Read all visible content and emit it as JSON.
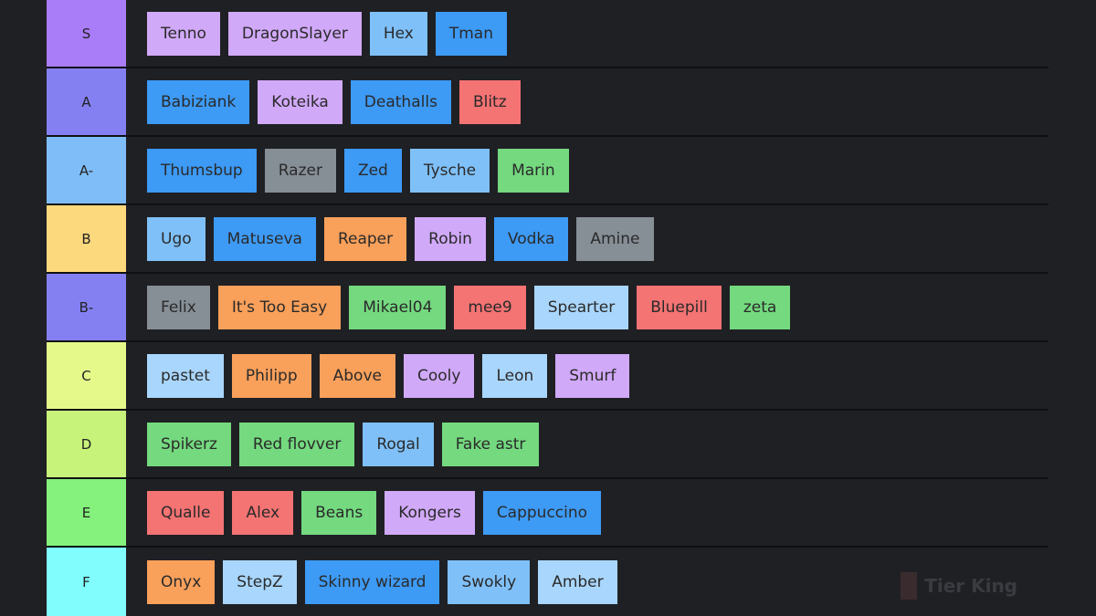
{
  "tiers": [
    {
      "label": "S",
      "color": "#a97cf8",
      "items": [
        {
          "name": "Tenno",
          "color": "#d1a9f9"
        },
        {
          "name": "DragonSlayer",
          "color": "#d1a9f9"
        },
        {
          "name": "Hex",
          "color": "#7fc0f8"
        },
        {
          "name": "Tman",
          "color": "#3d9af5"
        }
      ]
    },
    {
      "label": "A",
      "color": "#8580f2",
      "items": [
        {
          "name": "Babiziank",
          "color": "#3d9af5"
        },
        {
          "name": "Koteika",
          "color": "#d1a9f9"
        },
        {
          "name": "Deathalls",
          "color": "#3d9af5"
        },
        {
          "name": "Blitz",
          "color": "#f47373"
        }
      ]
    },
    {
      "label": "A-",
      "color": "#7fbdf8",
      "items": [
        {
          "name": "Thumsbup",
          "color": "#3d9af5"
        },
        {
          "name": "Razer",
          "color": "#868e96"
        },
        {
          "name": "Zed",
          "color": "#3d9af5"
        },
        {
          "name": "Tysche",
          "color": "#7fc0f8"
        },
        {
          "name": "Marin",
          "color": "#74d97f"
        }
      ]
    },
    {
      "label": "B",
      "color": "#fdd97d",
      "items": [
        {
          "name": "Ugo",
          "color": "#7fc0f8"
        },
        {
          "name": "Matuseva",
          "color": "#3d9af5"
        },
        {
          "name": "Reaper",
          "color": "#f9a05b"
        },
        {
          "name": "Robin",
          "color": "#d1a9f9"
        },
        {
          "name": "Vodka",
          "color": "#3d9af5"
        },
        {
          "name": "Amine",
          "color": "#868e96"
        }
      ]
    },
    {
      "label": "B-",
      "color": "#8580f2",
      "items": [
        {
          "name": "Felix",
          "color": "#868e96"
        },
        {
          "name": "It's Too Easy",
          "color": "#f9a05b"
        },
        {
          "name": "Mikael04",
          "color": "#74d97f"
        },
        {
          "name": "mee9",
          "color": "#f47373"
        },
        {
          "name": "Spearter",
          "color": "#a9d6fc"
        },
        {
          "name": "Bluepill",
          "color": "#f47373"
        },
        {
          "name": "zeta",
          "color": "#74d97f"
        }
      ]
    },
    {
      "label": "C",
      "color": "#e5f98b",
      "items": [
        {
          "name": "pastet",
          "color": "#a9d6fc"
        },
        {
          "name": "Philipp",
          "color": "#f9a05b"
        },
        {
          "name": "Above",
          "color": "#f9a05b"
        },
        {
          "name": "Cooly",
          "color": "#d1a9f9"
        },
        {
          "name": "Leon",
          "color": "#a9d6fc"
        },
        {
          "name": "Smurf",
          "color": "#d1a9f9"
        }
      ]
    },
    {
      "label": "D",
      "color": "#c8f37b",
      "items": [
        {
          "name": "Spikerz",
          "color": "#74d97f"
        },
        {
          "name": "Red flovver",
          "color": "#74d97f"
        },
        {
          "name": "Rogal",
          "color": "#7fc0f8"
        },
        {
          "name": "Fake astr",
          "color": "#74d97f"
        }
      ]
    },
    {
      "label": "E",
      "color": "#84f27c",
      "items": [
        {
          "name": "Qualle",
          "color": "#f47373"
        },
        {
          "name": "Alex",
          "color": "#f47373"
        },
        {
          "name": "Beans",
          "color": "#74d97f"
        },
        {
          "name": "Kongers",
          "color": "#d1a9f9"
        },
        {
          "name": "Cappuccino",
          "color": "#3d9af5"
        }
      ]
    },
    {
      "label": "F",
      "color": "#81fdfd",
      "items": [
        {
          "name": "Onyx",
          "color": "#f9a05b"
        },
        {
          "name": "StepZ",
          "color": "#a9d6fc"
        },
        {
          "name": "Skinny wizard",
          "color": "#3d9af5"
        },
        {
          "name": "Swokly",
          "color": "#7fc0f8"
        },
        {
          "name": "Amber",
          "color": "#a9d6fc"
        }
      ]
    }
  ],
  "watermark": "Tier King"
}
